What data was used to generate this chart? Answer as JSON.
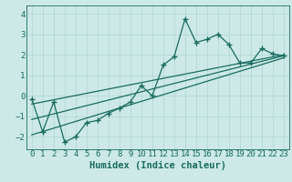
{
  "title": "",
  "xlabel": "Humidex (Indice chaleur)",
  "ylabel": "",
  "bg_color": "#cce9e7",
  "line_color": "#1a6b60",
  "xlim": [
    -0.5,
    23.5
  ],
  "ylim": [
    -2.6,
    4.4
  ],
  "xticks": [
    0,
    1,
    2,
    3,
    4,
    5,
    6,
    7,
    8,
    9,
    10,
    11,
    12,
    13,
    14,
    15,
    16,
    17,
    18,
    19,
    20,
    21,
    22,
    23
  ],
  "yticks": [
    -2,
    -1,
    0,
    1,
    2,
    3,
    4
  ],
  "main_x": [
    0,
    1,
    2,
    3,
    4,
    5,
    6,
    7,
    8,
    9,
    10,
    11,
    12,
    13,
    14,
    15,
    16,
    17,
    18,
    19,
    20,
    21,
    22,
    23
  ],
  "main_y": [
    -0.15,
    -1.75,
    -0.3,
    -2.25,
    -2.0,
    -1.3,
    -1.2,
    -0.85,
    -0.6,
    -0.3,
    0.5,
    0.0,
    1.5,
    1.9,
    3.75,
    2.6,
    2.75,
    3.0,
    2.5,
    1.6,
    1.6,
    2.3,
    2.05,
    1.95
  ],
  "trend1_x": [
    0,
    23
  ],
  "trend1_y": [
    -1.9,
    1.85
  ],
  "trend2_x": [
    0,
    23
  ],
  "trend2_y": [
    -0.4,
    2.0
  ],
  "trend3_x": [
    0,
    23
  ],
  "trend3_y": [
    -1.15,
    1.95
  ],
  "grid_color": "#afd6d2",
  "font_color": "#1a6b60",
  "tick_fontsize": 6.5,
  "label_fontsize": 7.5
}
